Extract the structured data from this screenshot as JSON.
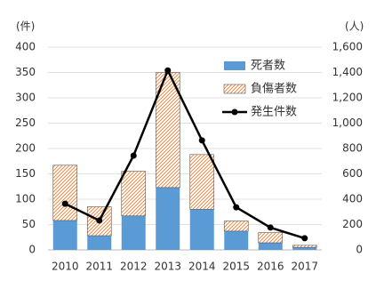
{
  "chart_data": {
    "type": "bar",
    "y_label": "(件)",
    "y2_label": "(人)",
    "categories": [
      "2010",
      "2011",
      "2012",
      "2013",
      "2014",
      "2015",
      "2016",
      "2017"
    ],
    "series": [
      {
        "name": "死者数",
        "type": "bar",
        "axis": "y2",
        "color": "#5b9bd5",
        "values": [
          232,
          112,
          268,
          492,
          320,
          148,
          56,
          20
        ]
      },
      {
        "name": "負傷者数",
        "type": "bar",
        "axis": "y2",
        "color": "#ed7d31",
        "pattern": "hatch",
        "values": [
          436,
          228,
          352,
          908,
          432,
          80,
          80,
          16
        ]
      },
      {
        "name": "発生件数",
        "type": "line",
        "axis": "y",
        "color": "#000000",
        "values": [
          91,
          58,
          186,
          354,
          216,
          84,
          44,
          23
        ]
      }
    ],
    "stacked": true,
    "ylim": [
      0,
      400
    ],
    "yticks": [
      0,
      50,
      100,
      150,
      200,
      250,
      300,
      350,
      400
    ],
    "y2lim": [
      0,
      1600
    ],
    "y2ticks": [
      0,
      200,
      400,
      600,
      800,
      {
        "value": 1000,
        "label": "1,000"
      },
      {
        "value": 1200,
        "label": "1,200"
      },
      {
        "value": 1400,
        "label": "1,400"
      },
      {
        "value": 1600,
        "label": "1,600"
      }
    ],
    "grid": true,
    "legend": "top-right"
  }
}
